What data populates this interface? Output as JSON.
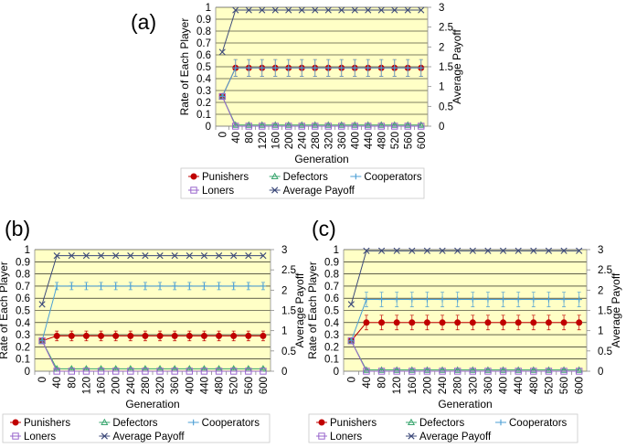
{
  "chart_data": [
    {
      "panel_label": "(a)",
      "type": "line",
      "ylabel": "Rate of Each Player",
      "y2label": "Average Payoff",
      "xlabel": "Generation",
      "x": [
        0,
        40,
        80,
        120,
        160,
        200,
        240,
        280,
        320,
        360,
        400,
        440,
        480,
        520,
        560,
        600
      ],
      "ylim": [
        0,
        1
      ],
      "y2lim": [
        0,
        3
      ],
      "yticks": [
        "0",
        "0.1",
        "0.2",
        "0.3",
        "0.4",
        "0.5",
        "0.6",
        "0.7",
        "0.8",
        "0.9",
        "1"
      ],
      "y2ticks": [
        "0",
        "0.5",
        "1",
        "1.5",
        "2",
        "2.5",
        "3"
      ],
      "grid": true,
      "legend_position": "bottom",
      "series": [
        {
          "name": "Punishers",
          "axis": "left",
          "marker": "dot",
          "color": "#c00000",
          "error": 0.07,
          "values": [
            0.25,
            0.49,
            0.49,
            0.49,
            0.49,
            0.49,
            0.49,
            0.49,
            0.49,
            0.49,
            0.49,
            0.49,
            0.49,
            0.49,
            0.49,
            0.49
          ]
        },
        {
          "name": "Defectors",
          "axis": "left",
          "marker": "triangle",
          "color": "#3aa66f",
          "error": 0.01,
          "values": [
            0.25,
            0.01,
            0.01,
            0.01,
            0.01,
            0.01,
            0.01,
            0.01,
            0.01,
            0.01,
            0.01,
            0.01,
            0.01,
            0.01,
            0.01,
            0.01
          ]
        },
        {
          "name": "Cooperators",
          "axis": "left",
          "marker": "plus",
          "color": "#4b9fd5",
          "error": 0.07,
          "values": [
            0.25,
            0.49,
            0.49,
            0.49,
            0.49,
            0.49,
            0.49,
            0.49,
            0.49,
            0.49,
            0.49,
            0.49,
            0.49,
            0.49,
            0.49,
            0.49
          ]
        },
        {
          "name": "Loners",
          "axis": "left",
          "marker": "square",
          "color": "#9966cc",
          "error": 0,
          "values": [
            0.25,
            0,
            0,
            0,
            0,
            0,
            0,
            0,
            0,
            0,
            0,
            0,
            0,
            0,
            0,
            0
          ]
        },
        {
          "name": "Average Payoff",
          "axis": "right",
          "marker": "x",
          "color": "#3d4a7a",
          "error": 0,
          "values": [
            1.87,
            2.93,
            2.93,
            2.93,
            2.93,
            2.93,
            2.93,
            2.93,
            2.93,
            2.93,
            2.93,
            2.93,
            2.93,
            2.93,
            2.93,
            2.93
          ]
        }
      ]
    },
    {
      "panel_label": "(b)",
      "type": "line",
      "ylabel": "Rate of Each Player",
      "y2label": "Average Payoff",
      "xlabel": "Generation",
      "x": [
        0,
        40,
        80,
        120,
        160,
        200,
        240,
        280,
        320,
        360,
        400,
        440,
        480,
        520,
        560,
        600
      ],
      "ylim": [
        0,
        1
      ],
      "y2lim": [
        0,
        3
      ],
      "yticks": [
        "0",
        "0.1",
        "0.2",
        "0.3",
        "0.4",
        "0.5",
        "0.6",
        "0.7",
        "0.8",
        "0.9",
        "1"
      ],
      "y2ticks": [
        "0",
        "0.5",
        "1",
        "1.5",
        "2",
        "2.5",
        "3"
      ],
      "grid": true,
      "legend_position": "bottom",
      "series": [
        {
          "name": "Punishers",
          "axis": "left",
          "marker": "dot",
          "color": "#c00000",
          "error": 0.04,
          "values": [
            0.25,
            0.29,
            0.29,
            0.29,
            0.29,
            0.29,
            0.29,
            0.29,
            0.29,
            0.29,
            0.29,
            0.29,
            0.29,
            0.29,
            0.29,
            0.29
          ]
        },
        {
          "name": "Defectors",
          "axis": "left",
          "marker": "triangle",
          "color": "#3aa66f",
          "error": 0.01,
          "values": [
            0.25,
            0.02,
            0.02,
            0.02,
            0.02,
            0.02,
            0.02,
            0.02,
            0.02,
            0.02,
            0.02,
            0.02,
            0.02,
            0.02,
            0.02,
            0.02
          ]
        },
        {
          "name": "Cooperators",
          "axis": "left",
          "marker": "plus",
          "color": "#4b9fd5",
          "error": 0.03,
          "values": [
            0.25,
            0.7,
            0.7,
            0.7,
            0.7,
            0.7,
            0.7,
            0.7,
            0.7,
            0.7,
            0.7,
            0.7,
            0.7,
            0.7,
            0.7,
            0.7
          ]
        },
        {
          "name": "Loners",
          "axis": "left",
          "marker": "square",
          "color": "#9966cc",
          "error": 0,
          "values": [
            0.25,
            0,
            0,
            0,
            0,
            0,
            0,
            0,
            0,
            0,
            0,
            0,
            0,
            0,
            0,
            0
          ]
        },
        {
          "name": "Average Payoff",
          "axis": "right",
          "marker": "x",
          "color": "#3d4a7a",
          "error": 0,
          "values": [
            1.65,
            2.85,
            2.85,
            2.85,
            2.85,
            2.85,
            2.85,
            2.85,
            2.85,
            2.85,
            2.85,
            2.85,
            2.85,
            2.85,
            2.85,
            2.85
          ]
        }
      ]
    },
    {
      "panel_label": "(c)",
      "type": "line",
      "ylabel": "Rate of Each Player",
      "y2label": "Average Payoff",
      "xlabel": "Generation",
      "x": [
        0,
        40,
        80,
        120,
        160,
        200,
        240,
        280,
        320,
        360,
        400,
        440,
        480,
        520,
        560,
        600
      ],
      "ylim": [
        0,
        1
      ],
      "y2lim": [
        0,
        3
      ],
      "yticks": [
        "0",
        "0.1",
        "0.2",
        "0.3",
        "0.4",
        "0.5",
        "0.6",
        "0.7",
        "0.8",
        "0.9",
        "1"
      ],
      "y2ticks": [
        "0",
        "0.5",
        "1",
        "1.5",
        "2",
        "2.5",
        "3"
      ],
      "grid": true,
      "legend_position": "bottom",
      "series": [
        {
          "name": "Punishers",
          "axis": "left",
          "marker": "dot",
          "color": "#c00000",
          "error": 0.06,
          "values": [
            0.25,
            0.4,
            0.4,
            0.4,
            0.4,
            0.4,
            0.4,
            0.4,
            0.4,
            0.4,
            0.4,
            0.4,
            0.4,
            0.4,
            0.4,
            0.4
          ]
        },
        {
          "name": "Defectors",
          "axis": "left",
          "marker": "triangle",
          "color": "#3aa66f",
          "error": 0.01,
          "values": [
            0.25,
            0.01,
            0.01,
            0.01,
            0.01,
            0.01,
            0.01,
            0.01,
            0.01,
            0.01,
            0.01,
            0.01,
            0.01,
            0.01,
            0.01,
            0.01
          ]
        },
        {
          "name": "Cooperators",
          "axis": "left",
          "marker": "plus",
          "color": "#4b9fd5",
          "error": 0.06,
          "values": [
            0.25,
            0.59,
            0.59,
            0.59,
            0.59,
            0.59,
            0.59,
            0.59,
            0.59,
            0.59,
            0.59,
            0.59,
            0.59,
            0.59,
            0.59,
            0.59
          ]
        },
        {
          "name": "Loners",
          "axis": "left",
          "marker": "square",
          "color": "#9966cc",
          "error": 0,
          "values": [
            0.25,
            0,
            0,
            0,
            0,
            0,
            0,
            0,
            0,
            0,
            0,
            0,
            0,
            0,
            0,
            0
          ]
        },
        {
          "name": "Average Payoff",
          "axis": "right",
          "marker": "x",
          "color": "#3d4a7a",
          "error": 0,
          "values": [
            1.65,
            2.97,
            2.97,
            2.97,
            2.97,
            2.97,
            2.97,
            2.97,
            2.97,
            2.97,
            2.97,
            2.97,
            2.97,
            2.97,
            2.97,
            2.97
          ]
        }
      ]
    }
  ],
  "style": {
    "plot_background": "#ffffc6",
    "grid_color": "#000000",
    "axis_color": "#8c8c8c",
    "text_color": "#000000"
  }
}
